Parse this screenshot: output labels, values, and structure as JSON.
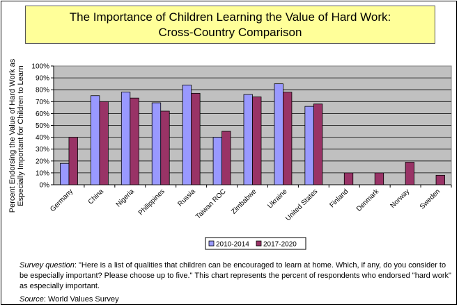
{
  "title": {
    "line1": "The Importance of Children Learning the Value of Hard Work:",
    "line2": "Cross-Country Comparison"
  },
  "footnote": {
    "label": "Survey question",
    "text": ": \"Here is a list of qualities that children can be encouraged to learn at home. Which, if any, do you consider to be especially important? Please choose up to five.\" This chart represents the percent of respondents who endorsed \"hard work\" as especially important.",
    "source_label": "Source",
    "source_text": ": World Values Survey"
  },
  "chart_data": {
    "type": "bar",
    "title": "The Importance of Children Learning the Value of Hard Work: Cross-Country Comparison",
    "xlabel": "",
    "ylabel_lines": [
      "Percent Endorsing the Value of Hard Work as",
      "Especially Important for Children to Learn"
    ],
    "ylim": [
      0,
      100
    ],
    "yticks": [
      "0%",
      "10%",
      "20%",
      "30%",
      "40%",
      "50%",
      "60%",
      "70%",
      "80%",
      "90%",
      "100%"
    ],
    "grid": true,
    "legend_position": "bottom",
    "categories": [
      "Germany",
      "China",
      "Nigeria",
      "Philippines",
      "Russia",
      "Taiwan ROC",
      "Zimbabwe",
      "Ukraine",
      "United States",
      "Finland",
      "Denmark",
      "Norway",
      "Sweden"
    ],
    "series": [
      {
        "name": "2010-2014",
        "color": "#9999ff",
        "values": [
          18,
          75,
          78,
          69,
          84,
          40,
          76,
          85,
          66,
          null,
          null,
          null,
          null
        ]
      },
      {
        "name": "2017-2020",
        "color": "#993366",
        "values": [
          40,
          70,
          73,
          62,
          77,
          45,
          74,
          78,
          68,
          10,
          10,
          19,
          8
        ]
      }
    ]
  }
}
